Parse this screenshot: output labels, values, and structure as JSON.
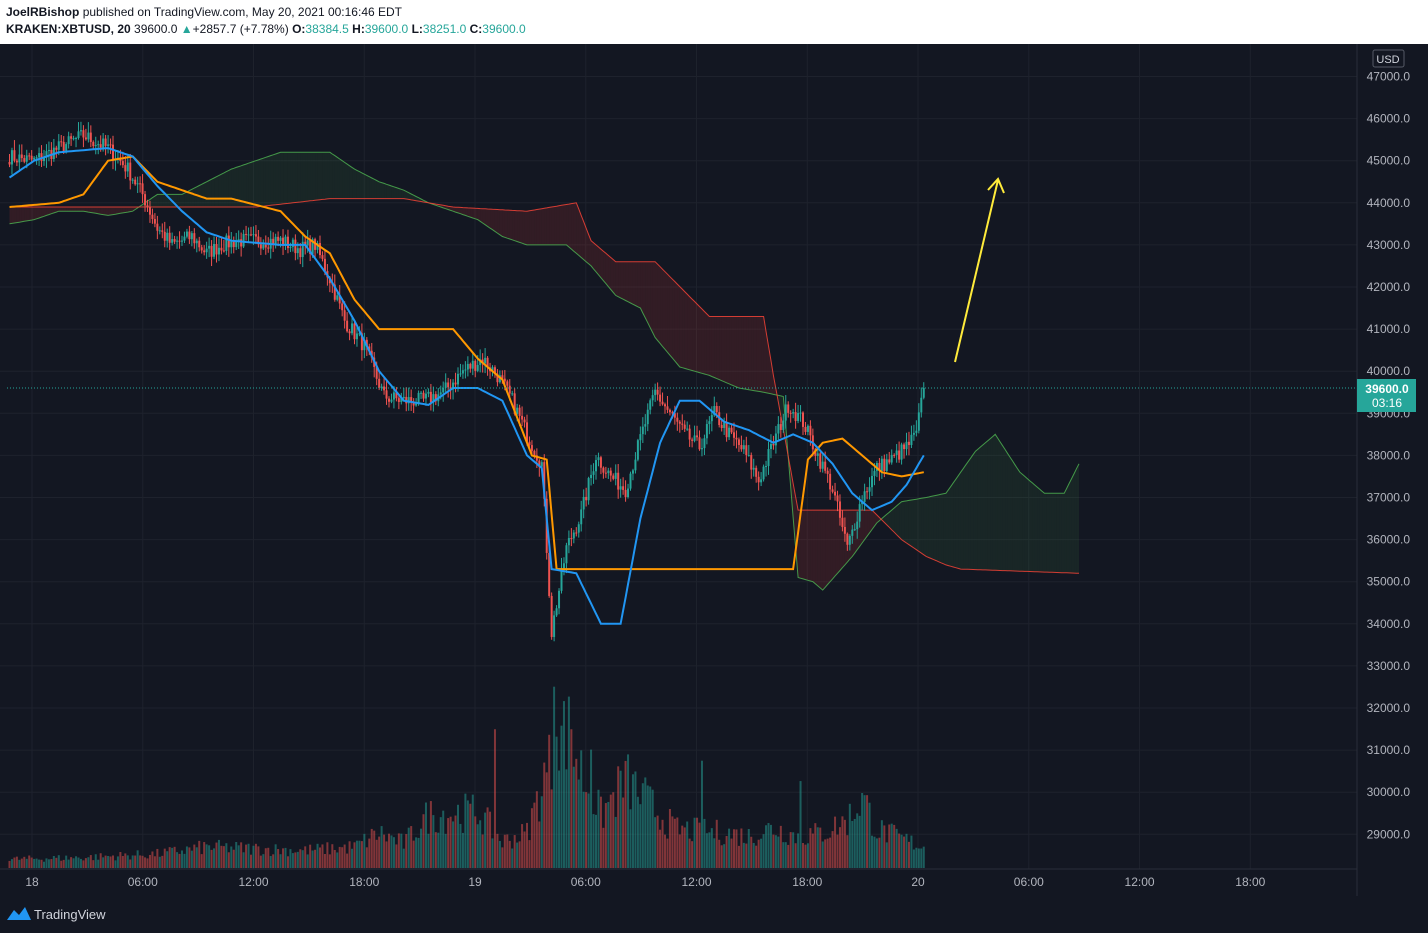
{
  "header": {
    "author": "JoelRBishop",
    "published_text": "published on TradingView.com, May 20, 2021 00:16:46 EDT",
    "symbol": "KRAKEN:XBTUSD, 20",
    "last": "39600.0",
    "change": "+2857.7 (+7.78%)",
    "o_label": "O:",
    "o": "38384.5",
    "h_label": "H:",
    "h": "39600.0",
    "l_label": "L:",
    "l": "38251.0",
    "c_label": "C:",
    "c": "39600.0"
  },
  "footer": {
    "brand": "TradingView"
  },
  "colors": {
    "up": "#26a69a",
    "down": "#ef5350",
    "tenkan": "#2196f3",
    "kijun": "#ff9800",
    "spanA": "#4caf50",
    "spanB": "#f44336",
    "arrow": "#ffeb3b"
  },
  "chart_data": {
    "type": "candlestick",
    "currency_label": "USD",
    "price_label": "39600.0",
    "countdown_label": "03:16",
    "ylim": [
      28400,
      47600
    ],
    "y_ticks": [
      "47000.0",
      "46000.0",
      "45000.0",
      "44000.0",
      "43000.0",
      "42000.0",
      "41000.0",
      "40000.0",
      "39000.0",
      "38000.0",
      "37000.0",
      "36000.0",
      "35000.0",
      "34000.0",
      "33000.0",
      "32000.0",
      "31000.0",
      "30000.0",
      "29000.0"
    ],
    "x_ticks": [
      "18",
      "06:00",
      "12:00",
      "18:00",
      "19",
      "06:00",
      "12:00",
      "18:00",
      "20",
      "06:00",
      "12:00",
      "18:00"
    ],
    "price_keyframes": [
      [
        0,
        45100
      ],
      [
        10,
        45000
      ],
      [
        20,
        45300
      ],
      [
        30,
        45600
      ],
      [
        40,
        45300
      ],
      [
        48,
        44800
      ],
      [
        54,
        44200
      ],
      [
        60,
        43400
      ],
      [
        66,
        43000
      ],
      [
        74,
        43200
      ],
      [
        80,
        42800
      ],
      [
        86,
        43000
      ],
      [
        92,
        43100
      ],
      [
        100,
        43100
      ],
      [
        110,
        43100
      ],
      [
        118,
        42900
      ],
      [
        124,
        43000
      ],
      [
        130,
        42200
      ],
      [
        136,
        41200
      ],
      [
        144,
        40600
      ],
      [
        152,
        39400
      ],
      [
        160,
        39300
      ],
      [
        168,
        39300
      ],
      [
        176,
        39500
      ],
      [
        184,
        40000
      ],
      [
        192,
        40300
      ],
      [
        198,
        39900
      ],
      [
        204,
        39300
      ],
      [
        210,
        38500
      ],
      [
        216,
        37800
      ],
      [
        220,
        33800
      ],
      [
        226,
        35800
      ],
      [
        232,
        36600
      ],
      [
        238,
        38000
      ],
      [
        244,
        37500
      ],
      [
        250,
        37200
      ],
      [
        256,
        38400
      ],
      [
        262,
        39500
      ],
      [
        268,
        39000
      ],
      [
        274,
        38500
      ],
      [
        280,
        38200
      ],
      [
        286,
        39000
      ],
      [
        292,
        38500
      ],
      [
        298,
        38100
      ],
      [
        304,
        37400
      ],
      [
        310,
        38300
      ],
      [
        316,
        39200
      ],
      [
        322,
        38800
      ],
      [
        328,
        38000
      ],
      [
        334,
        37200
      ],
      [
        340,
        35800
      ],
      [
        346,
        37000
      ],
      [
        352,
        37700
      ],
      [
        358,
        37900
      ],
      [
        364,
        38200
      ],
      [
        368,
        38500
      ],
      [
        371,
        39600
      ]
    ],
    "tenkan_keyframes": [
      [
        0,
        44600
      ],
      [
        10,
        45000
      ],
      [
        20,
        45200
      ],
      [
        40,
        45300
      ],
      [
        50,
        45100
      ],
      [
        60,
        44400
      ],
      [
        70,
        43800
      ],
      [
        80,
        43300
      ],
      [
        90,
        43100
      ],
      [
        110,
        43000
      ],
      [
        120,
        43000
      ],
      [
        130,
        42200
      ],
      [
        140,
        41200
      ],
      [
        150,
        40000
      ],
      [
        160,
        39300
      ],
      [
        170,
        39200
      ],
      [
        180,
        39600
      ],
      [
        190,
        39600
      ],
      [
        200,
        39300
      ],
      [
        210,
        38000
      ],
      [
        216,
        37700
      ],
      [
        220,
        35300
      ],
      [
        230,
        35200
      ],
      [
        240,
        34000
      ],
      [
        248,
        34000
      ],
      [
        256,
        36500
      ],
      [
        264,
        38300
      ],
      [
        272,
        39300
      ],
      [
        280,
        39300
      ],
      [
        290,
        38800
      ],
      [
        300,
        38600
      ],
      [
        310,
        38300
      ],
      [
        318,
        38500
      ],
      [
        326,
        38300
      ],
      [
        334,
        37800
      ],
      [
        342,
        37100
      ],
      [
        350,
        36700
      ],
      [
        358,
        36900
      ],
      [
        364,
        37300
      ],
      [
        371,
        38000
      ]
    ],
    "kijun_keyframes": [
      [
        0,
        43900
      ],
      [
        20,
        44000
      ],
      [
        30,
        44200
      ],
      [
        40,
        45000
      ],
      [
        50,
        45100
      ],
      [
        60,
        44500
      ],
      [
        70,
        44300
      ],
      [
        80,
        44100
      ],
      [
        90,
        44100
      ],
      [
        110,
        43800
      ],
      [
        120,
        43200
      ],
      [
        130,
        42800
      ],
      [
        140,
        41700
      ],
      [
        150,
        41000
      ],
      [
        160,
        41000
      ],
      [
        170,
        41000
      ],
      [
        180,
        41000
      ],
      [
        190,
        40300
      ],
      [
        200,
        39800
      ],
      [
        212,
        38000
      ],
      [
        218,
        37900
      ],
      [
        222,
        35300
      ],
      [
        260,
        35300
      ],
      [
        300,
        35300
      ],
      [
        318,
        35300
      ],
      [
        324,
        37900
      ],
      [
        330,
        38300
      ],
      [
        338,
        38400
      ],
      [
        346,
        38000
      ],
      [
        354,
        37600
      ],
      [
        362,
        37500
      ],
      [
        371,
        37600
      ]
    ],
    "spanA_keyframes": [
      [
        0,
        43500
      ],
      [
        10,
        43600
      ],
      [
        20,
        43800
      ],
      [
        30,
        43800
      ],
      [
        40,
        43700
      ],
      [
        50,
        43800
      ],
      [
        60,
        44200
      ],
      [
        70,
        44200
      ],
      [
        90,
        44800
      ],
      [
        110,
        45200
      ],
      [
        130,
        45200
      ],
      [
        140,
        44800
      ],
      [
        150,
        44500
      ],
      [
        160,
        44300
      ],
      [
        170,
        44000
      ],
      [
        190,
        43600
      ],
      [
        200,
        43200
      ],
      [
        210,
        43000
      ],
      [
        226,
        43000
      ],
      [
        236,
        42500
      ],
      [
        246,
        41800
      ],
      [
        256,
        41500
      ],
      [
        262,
        40800
      ],
      [
        272,
        40100
      ],
      [
        284,
        39900
      ],
      [
        296,
        39600
      ],
      [
        306,
        39500
      ],
      [
        314,
        39400
      ],
      [
        320,
        35100
      ],
      [
        326,
        35000
      ],
      [
        330,
        34800
      ],
      [
        342,
        35600
      ],
      [
        352,
        36400
      ],
      [
        362,
        36900
      ],
      [
        372,
        37000
      ],
      [
        380,
        37100
      ],
      [
        392,
        38100
      ],
      [
        400,
        38500
      ],
      [
        410,
        37600
      ],
      [
        420,
        37100
      ],
      [
        428,
        37100
      ],
      [
        434,
        37800
      ]
    ],
    "spanB_keyframes": [
      [
        0,
        43900
      ],
      [
        20,
        43900
      ],
      [
        60,
        43900
      ],
      [
        100,
        43900
      ],
      [
        130,
        44100
      ],
      [
        160,
        44100
      ],
      [
        180,
        43900
      ],
      [
        210,
        43800
      ],
      [
        230,
        44000
      ],
      [
        236,
        43100
      ],
      [
        246,
        42600
      ],
      [
        262,
        42600
      ],
      [
        284,
        41300
      ],
      [
        306,
        41300
      ],
      [
        310,
        39900
      ],
      [
        320,
        36700
      ],
      [
        340,
        36700
      ],
      [
        350,
        36700
      ],
      [
        362,
        36000
      ],
      [
        372,
        35600
      ],
      [
        380,
        35400
      ],
      [
        386,
        35300
      ],
      [
        434,
        35200
      ]
    ],
    "volume_keyframes": [
      [
        0,
        0.05
      ],
      [
        30,
        0.06
      ],
      [
        60,
        0.08
      ],
      [
        80,
        0.12
      ],
      [
        100,
        0.11
      ],
      [
        120,
        0.1
      ],
      [
        140,
        0.12
      ],
      [
        150,
        0.2
      ],
      [
        160,
        0.14
      ],
      [
        170,
        0.3
      ],
      [
        190,
        0.32
      ],
      [
        200,
        0.15
      ],
      [
        210,
        0.2
      ],
      [
        218,
        0.55
      ],
      [
        226,
        0.8
      ],
      [
        232,
        0.55
      ],
      [
        240,
        0.3
      ],
      [
        250,
        0.5
      ],
      [
        270,
        0.22
      ],
      [
        290,
        0.2
      ],
      [
        300,
        0.18
      ],
      [
        310,
        0.23
      ],
      [
        320,
        0.18
      ],
      [
        330,
        0.2
      ],
      [
        340,
        0.27
      ],
      [
        346,
        0.4
      ],
      [
        352,
        0.22
      ],
      [
        371,
        0.12
      ]
    ],
    "volume_spikes": [
      [
        221,
        0.98
      ],
      [
        222,
        0.71
      ],
      [
        197,
        0.75
      ],
      [
        228,
        0.75
      ],
      [
        236,
        0.64
      ],
      [
        281,
        0.58
      ],
      [
        321,
        0.47
      ]
    ]
  }
}
